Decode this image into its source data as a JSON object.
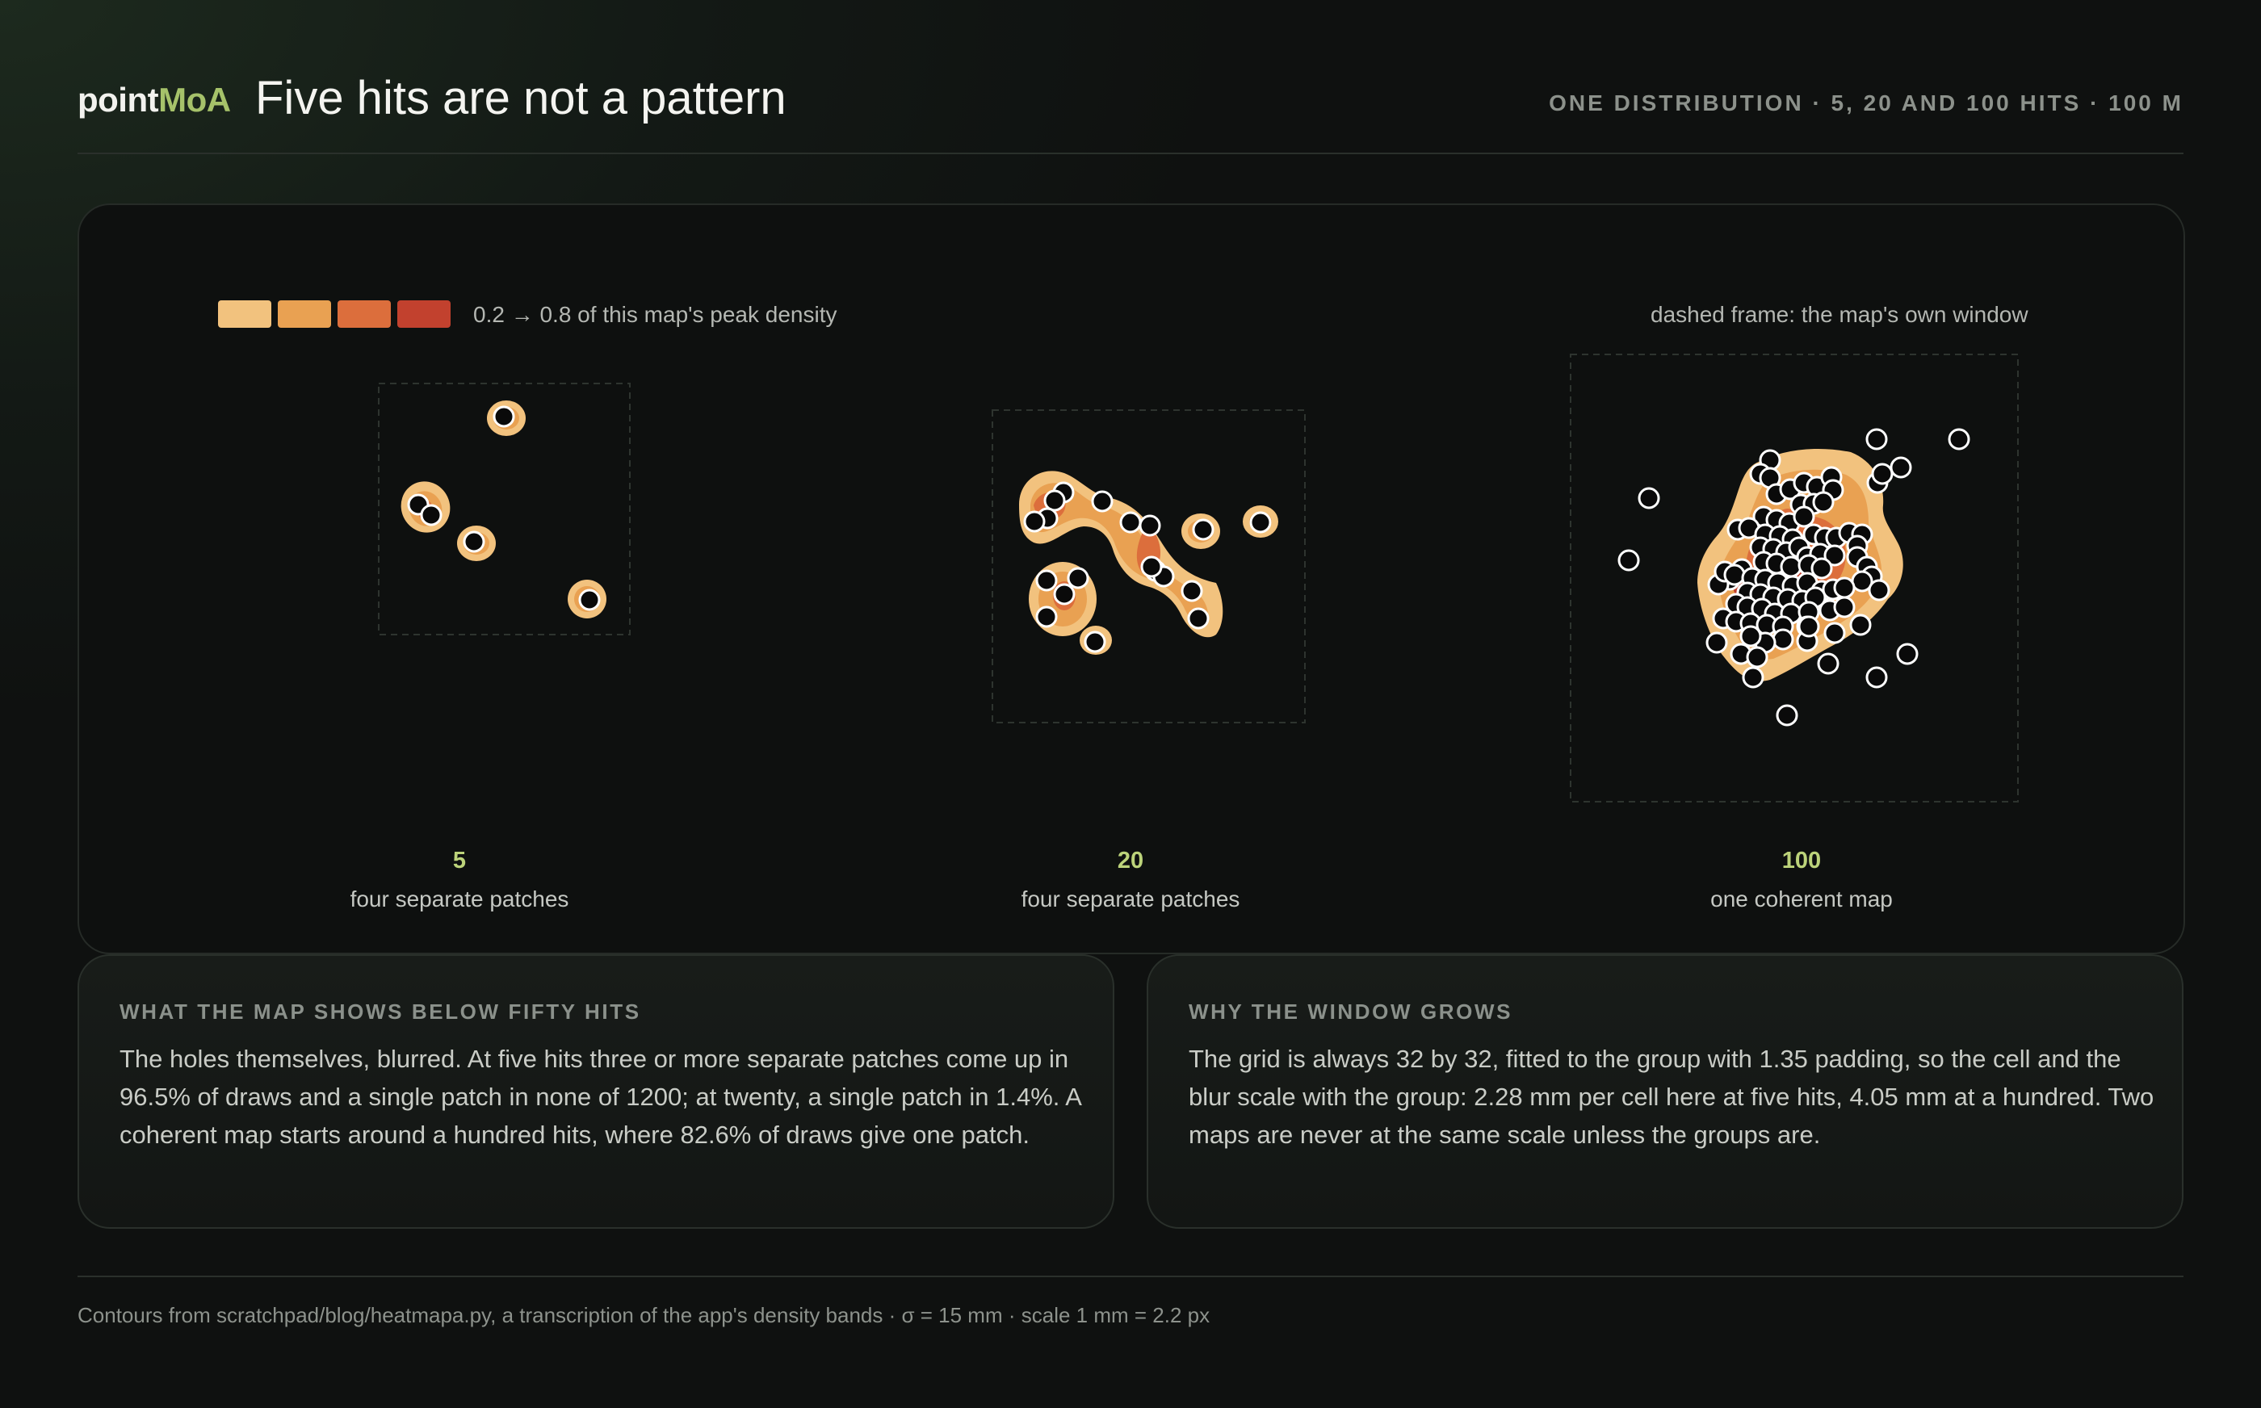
{
  "brand": {
    "part1": "point",
    "part2": "MoA"
  },
  "title": "Five hits are not a pattern",
  "kicker": "ONE DISTRIBUTION · 5, 20 AND 100 HITS · 100 M",
  "legend": {
    "colors": [
      "#f2c27e",
      "#e9a152",
      "#dc6e3c",
      "#c2412e"
    ],
    "text": "0.2 → 0.8 of this map's peak density"
  },
  "frame_note": "dashed frame: the map's own window",
  "panels": [
    {
      "count": "5",
      "caption": "four separate patches"
    },
    {
      "count": "20",
      "caption": "four separate patches"
    },
    {
      "count": "100",
      "caption": "one coherent map"
    }
  ],
  "cards": [
    {
      "label": "WHAT THE MAP SHOWS BELOW FIFTY HITS",
      "body": "The holes themselves, blurred. At five hits three or more separate patches come up in 96.5% of draws and a single patch in none of 1200; at twenty, a single patch in 1.4%. A coherent map starts around a hundred hits, where 82.6% of draws give one patch."
    },
    {
      "label": "WHY THE WINDOW GROWS",
      "body": "The grid is always 32 by 32, fitted to the group with 1.35 padding, so the cell and the blur scale with the group: 2.28 mm per cell here at five hits, 4.05 mm at a hundred. Two maps are never at the same scale unless the groups are."
    }
  ],
  "footer": "Contours from scratchpad/blog/heatmapa.py, a transcription of the app's density bands · σ = 15 mm · scale 1 mm = 2.2 px",
  "colors": {
    "accent": "#a6c26a",
    "count": "#bcd37a",
    "hit_fill": "#0a0a0a",
    "hit_stroke": "#ffffff"
  }
}
